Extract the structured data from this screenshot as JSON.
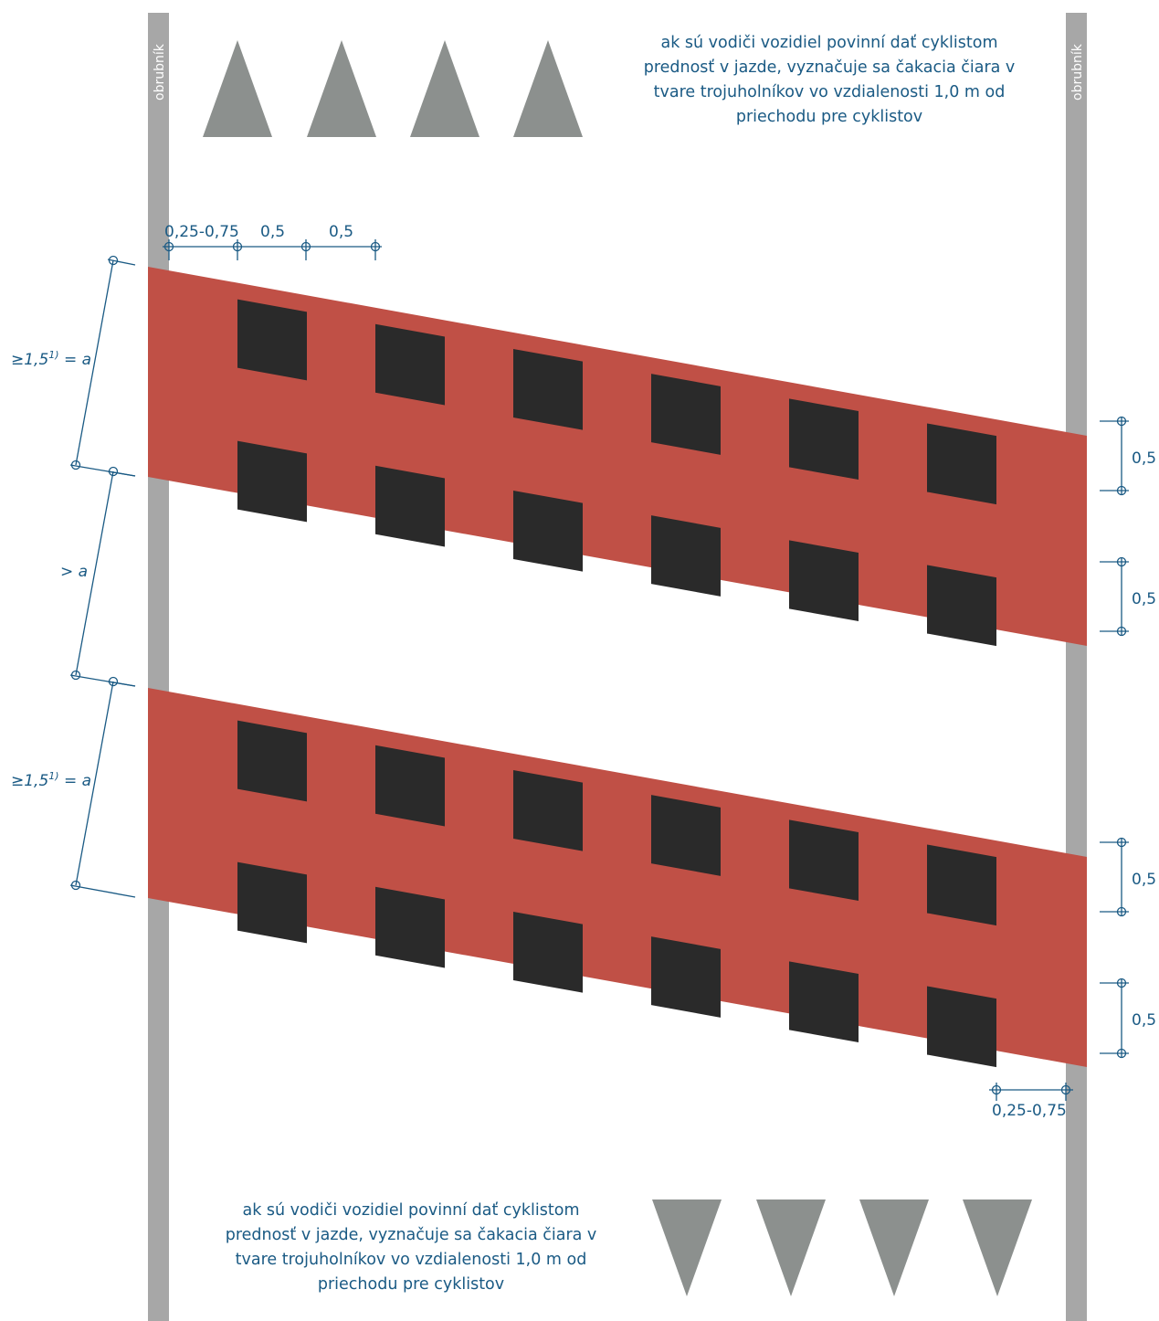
{
  "colors": {
    "curb": "#a7a7a7",
    "curb_text": "#ffffff",
    "triangle": "#8c908e",
    "band": "#c05046",
    "square": "#2a2a2a",
    "dimension": "#1a5a84",
    "note_text": "#1a5a84"
  },
  "curb_label": "obrubník",
  "notes": {
    "top": "ak sú vodiči vozidiel povinní dať cyklistom\nprednosť v jazde, vyznačuje sa čakacia čiara v\ntvare trojuholníkov vo vzdialenosti 1,0 m od\npriechodu pre cyklistov",
    "bottom": "ak sú vodiči vozidiel povinní dať cyklistom\nprednosť v jazde, vyznačuje sa čakacia čiara v\ntvare trojuholníkov vo vzdialenosti 1,0 m od\npriechodu pre cyklistov"
  },
  "dimensions": {
    "top_offset": "0,25-0,75",
    "top_square": "0,5",
    "top_gap": "0,5",
    "bottom_offset": "0,25-0,75",
    "right": [
      "0,5",
      "0,5",
      "0,5",
      "0,5"
    ],
    "left_band_1": {
      "main": "≥1,5",
      "sup": "1)",
      "tail": " = a"
    },
    "left_gap": "> a",
    "left_band_2": {
      "main": "≥1,5",
      "sup": "1)",
      "tail": " = a"
    }
  }
}
